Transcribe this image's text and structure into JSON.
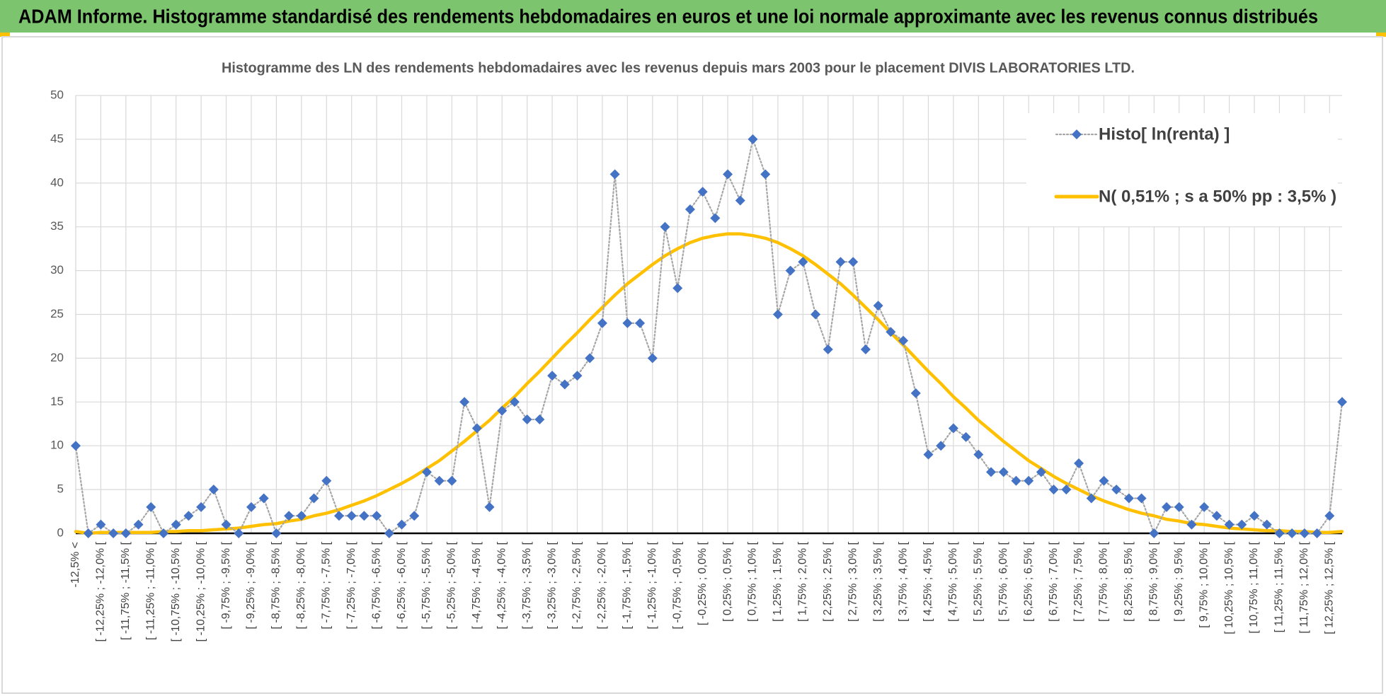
{
  "header": {
    "title": "ADAM Informe. Histogramme standardisé des rendements hebdomadaires en euros et une loi normale approximante avec les revenus connus distribués"
  },
  "chart_data": {
    "type": "line",
    "title": "Histogramme des LN des rendements hebdomadaires avec les revenus depuis mars 2003 pour le placement DIVIS LABORATORIES LTD.",
    "categories": [
      "-12,5% <",
      null,
      "[ -12,25% ; -12,0% [",
      null,
      "[ -11,75% ; -11,5% [",
      null,
      "[ -11,25% ; -11,0% [",
      null,
      "[ -10,75% ; -10,5% [",
      null,
      "[ -10,25% ; -10,0% [",
      null,
      "[ -9,75% ; -9,5% [",
      null,
      "[ -9,25% ; -9,0% [",
      null,
      "[ -8,75% ; -8,5% [",
      null,
      "[ -8,25% ; -8,0% [",
      null,
      "[ -7,75% ; -7,5% [",
      null,
      "[ -7,25% ; -7,0% [",
      null,
      "[ -6,75% ; -6,5% [",
      null,
      "[ -6,25% ; -6,0% [",
      null,
      "[ -5,75% ; -5,5% [",
      null,
      "[ -5,25% ; -5,0% [",
      null,
      "[ -4,75% ; -4,5% [",
      null,
      "[ -4,25% ; -4,0% [",
      null,
      "[ -3,75% ; -3,5% [",
      null,
      "[ -3,25% ; -3,0% [",
      null,
      "[ -2,75% ; -2,5% [",
      null,
      "[ -2,25% ; -2,0% [",
      null,
      "[ -1,75% ; -1,5% [",
      null,
      "[ -1,25% ; -1,0% [",
      null,
      "[ -0,75% ; -0,5% [",
      null,
      "[ -0,25% ; 0,0% [",
      null,
      "[ 0,25% ; 0,5% [",
      null,
      "[ 0,75% ; 1,0% [",
      null,
      "[ 1,25% ; 1,5% [",
      null,
      "[ 1,75% ; 2,0% [",
      null,
      "[ 2,25% ; 2,5% [",
      null,
      "[ 2,75% ; 3,0% [",
      null,
      "[ 3,25% ; 3,5% [",
      null,
      "[ 3,75% ; 4,0% [",
      null,
      "[ 4,25% ; 4,5% [",
      null,
      "[ 4,75% ; 5,0% [",
      null,
      "[ 5,25% ; 5,5% [",
      null,
      "[ 5,75% ; 6,0% [",
      null,
      "[ 6,25% ; 6,5% [",
      null,
      "[ 6,75% ; 7,0% [",
      null,
      "[ 7,25% ; 7,5% [",
      null,
      "[ 7,75% ; 8,0% [",
      null,
      "[ 8,25% ; 8,5% [",
      null,
      "[ 8,75% ; 9,0% [",
      null,
      "[ 9,25% ; 9,5% [",
      null,
      "[ 9,75% ; 10,0% [",
      null,
      "[ 10,25% ; 10,5% [",
      null,
      "[ 10,75% ; 11,0% [",
      null,
      "[ 11,25% ; 11,5% [",
      null,
      "[ 11,75% ; 12,0% [",
      null,
      "[ 12,25% ; 12,5% [",
      null
    ],
    "series": [
      {
        "name": "Histo[ ln(renta) ]",
        "color": "#4472c4",
        "line_color": "#a6a6a6",
        "dash": "dotted",
        "marker": "diamond",
        "values": [
          10,
          0,
          1,
          0,
          0,
          1,
          3,
          0,
          1,
          2,
          3,
          5,
          1,
          0,
          3,
          4,
          0,
          2,
          2,
          4,
          6,
          2,
          2,
          2,
          2,
          0,
          1,
          2,
          7,
          6,
          6,
          15,
          12,
          3,
          14,
          15,
          13,
          13,
          18,
          17,
          18,
          20,
          24,
          41,
          24,
          24,
          20,
          35,
          28,
          37,
          39,
          36,
          41,
          38,
          45,
          41,
          25,
          30,
          31,
          25,
          21,
          31,
          31,
          21,
          26,
          23,
          22,
          16,
          9,
          10,
          12,
          11,
          9,
          7,
          7,
          6,
          6,
          7,
          5,
          5,
          8,
          4,
          6,
          5,
          4,
          4,
          0,
          3,
          3,
          1,
          3,
          2,
          1,
          1,
          2,
          1,
          0,
          0,
          0,
          0,
          2,
          15
        ]
      },
      {
        "name": "N( 0,51% ; s a 50% pp : 3,5% )",
        "color": "#ffc000",
        "dash": "solid",
        "marker": "none",
        "values": [
          0.2,
          0.0,
          0.1,
          0.1,
          0.1,
          0.1,
          0.1,
          0.2,
          0.2,
          0.3,
          0.3,
          0.4,
          0.5,
          0.6,
          0.8,
          1.0,
          1.1,
          1.4,
          1.6,
          2.0,
          2.3,
          2.7,
          3.2,
          3.7,
          4.3,
          5.0,
          5.7,
          6.5,
          7.4,
          8.3,
          9.4,
          10.5,
          11.7,
          12.9,
          14.3,
          15.6,
          17.1,
          18.5,
          20.0,
          21.5,
          22.9,
          24.4,
          25.8,
          27.2,
          28.5,
          29.6,
          30.7,
          31.7,
          32.5,
          33.2,
          33.7,
          34.0,
          34.2,
          34.2,
          34.0,
          33.7,
          33.2,
          32.5,
          31.7,
          30.7,
          29.6,
          28.5,
          27.2,
          25.8,
          24.4,
          22.9,
          21.5,
          20.0,
          18.5,
          17.1,
          15.6,
          14.3,
          12.9,
          11.7,
          10.5,
          9.4,
          8.3,
          7.4,
          6.5,
          5.7,
          5.0,
          4.3,
          3.7,
          3.2,
          2.7,
          2.3,
          2.0,
          1.6,
          1.4,
          1.1,
          1.0,
          0.8,
          0.6,
          0.5,
          0.4,
          0.3,
          0.3,
          0.2,
          0.2,
          0.1,
          0.1,
          0.2
        ]
      }
    ],
    "ylim": [
      0,
      50
    ],
    "yticks": [
      0,
      5,
      10,
      15,
      20,
      25,
      30,
      35,
      40,
      45,
      50
    ],
    "grid": true,
    "legend": "upper right"
  }
}
